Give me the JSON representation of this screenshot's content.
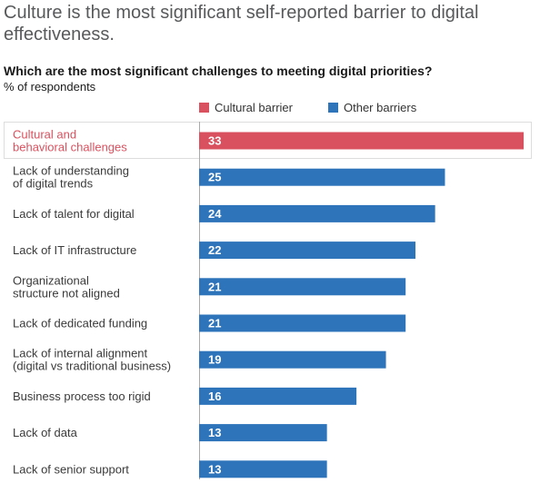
{
  "header": {
    "title": "Culture is the most significant self-reported barrier to digital effectiveness.",
    "subtitle": "Which are the most significant challenges to meeting digital priorities?",
    "unit": "% of respondents"
  },
  "legend": {
    "cultural": "Cultural barrier",
    "other": "Other barriers"
  },
  "colors": {
    "cultural": "#d9515f",
    "other": "#2e74bb",
    "axis": "#aaaaaa",
    "highlight_border": "#dddddd",
    "label_text": "#3a3a3a"
  },
  "chart_data": {
    "type": "bar",
    "orientation": "horizontal",
    "title": "Which are the most significant challenges to meeting digital priorities?",
    "ylabel": "% of respondents",
    "xlim": [
      0,
      33
    ],
    "grid": false,
    "legend_position": "top",
    "categories": [
      [
        "Cultural and",
        "behavioral challenges"
      ],
      [
        "Lack of understanding",
        "of digital trends"
      ],
      [
        "Lack of talent for digital"
      ],
      [
        "Lack of IT infrastructure"
      ],
      [
        "Organizational",
        "structure not aligned"
      ],
      [
        "Lack of dedicated funding"
      ],
      [
        "Lack of internal alignment",
        "(digital vs traditional business)"
      ],
      [
        "Business process too rigid"
      ],
      [
        "Lack of data"
      ],
      [
        "Lack of senior support"
      ]
    ],
    "values": [
      33,
      25,
      24,
      22,
      21,
      21,
      19,
      16,
      13,
      13
    ],
    "groups": [
      "cultural",
      "other",
      "other",
      "other",
      "other",
      "other",
      "other",
      "other",
      "other",
      "other"
    ]
  }
}
